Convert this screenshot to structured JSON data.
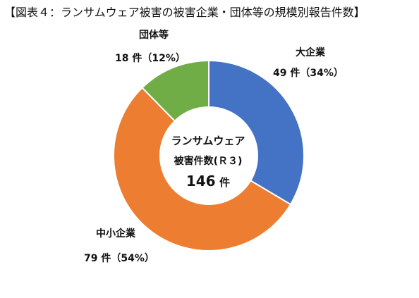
{
  "title": "【図表４：ランサムウェア被害の被害企業・団体等の規模別報告件数】",
  "chart_data": {
    "type": "pie",
    "variant": "donut",
    "categories": [
      "大企業",
      "中小企業",
      "団体等"
    ],
    "values": [
      49,
      79,
      18
    ],
    "percents": [
      34,
      54,
      12
    ],
    "value_labels": [
      "49 件（34%）",
      "79 件（54%）",
      "18 件（12%）"
    ],
    "colors": [
      "#4472C4",
      "#ED7D31",
      "#70AD47"
    ],
    "center": {
      "line1": "ランサムウェア",
      "line2": "被害件数(Ｒ３)",
      "total_value": "146",
      "total_unit": "件"
    }
  }
}
